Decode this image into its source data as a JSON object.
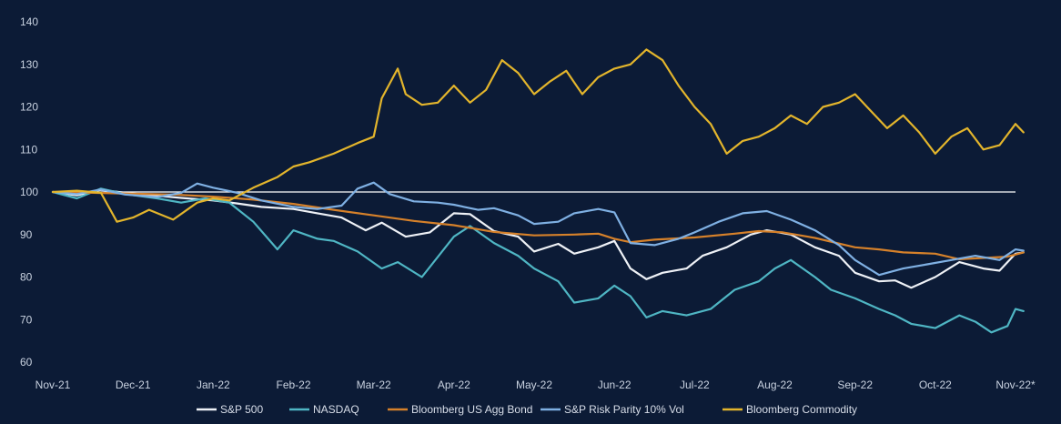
{
  "chart_data": {
    "type": "line",
    "title": "",
    "xlabel": "",
    "ylabel": "",
    "ylim": [
      60,
      140
    ],
    "yticks": [
      60,
      70,
      80,
      90,
      100,
      110,
      120,
      130,
      140
    ],
    "x_tick_labels": [
      "Nov-21",
      "Dec-21",
      "Jan-22",
      "Feb-22",
      "Mar-22",
      "Apr-22",
      "May-22",
      "Jun-22",
      "Jul-22",
      "Aug-22",
      "Sep-22",
      "Oct-22",
      "Nov-22*"
    ],
    "reference_line": 100,
    "grid": false,
    "legend_position": "bottom",
    "x_index_range": [
      0,
      12.1
    ],
    "series": [
      {
        "name": "S&P 500",
        "color": "#eef1f6",
        "points": [
          [
            0,
            100
          ],
          [
            0.3,
            99.2
          ],
          [
            0.6,
            100.5
          ],
          [
            0.9,
            99.8
          ],
          [
            1.2,
            99.3
          ],
          [
            1.6,
            98.6
          ],
          [
            2,
            98
          ],
          [
            2.3,
            97.3
          ],
          [
            2.6,
            96.5
          ],
          [
            3,
            96
          ],
          [
            3.3,
            95
          ],
          [
            3.6,
            94
          ],
          [
            3.9,
            91
          ],
          [
            4.1,
            92.8
          ],
          [
            4.4,
            89.5
          ],
          [
            4.7,
            90.5
          ],
          [
            5,
            95
          ],
          [
            5.2,
            94.8
          ],
          [
            5.5,
            90.8
          ],
          [
            5.8,
            89.5
          ],
          [
            6,
            86
          ],
          [
            6.3,
            87.8
          ],
          [
            6.5,
            85.5
          ],
          [
            6.8,
            87
          ],
          [
            7,
            88.5
          ],
          [
            7.2,
            82
          ],
          [
            7.4,
            79.5
          ],
          [
            7.6,
            81
          ],
          [
            7.9,
            82
          ],
          [
            8.1,
            85
          ],
          [
            8.4,
            87
          ],
          [
            8.7,
            90
          ],
          [
            8.9,
            91
          ],
          [
            9.2,
            90
          ],
          [
            9.5,
            87
          ],
          [
            9.8,
            85
          ],
          [
            10,
            81
          ],
          [
            10.3,
            79
          ],
          [
            10.5,
            79.2
          ],
          [
            10.7,
            77.5
          ],
          [
            11,
            80
          ],
          [
            11.3,
            83.5
          ],
          [
            11.6,
            82
          ],
          [
            11.8,
            81.5
          ],
          [
            12,
            85.5
          ],
          [
            12.1,
            85.8
          ]
        ]
      },
      {
        "name": "NASDAQ",
        "color": "#4fb6c4",
        "points": [
          [
            0,
            100
          ],
          [
            0.3,
            98.5
          ],
          [
            0.6,
            100.8
          ],
          [
            0.9,
            99.5
          ],
          [
            1.3,
            98.5
          ],
          [
            1.6,
            97.5
          ],
          [
            1.9,
            98.5
          ],
          [
            2.2,
            97.5
          ],
          [
            2.5,
            93
          ],
          [
            2.8,
            86.5
          ],
          [
            3,
            91
          ],
          [
            3.3,
            89
          ],
          [
            3.5,
            88.5
          ],
          [
            3.8,
            86
          ],
          [
            4.1,
            82
          ],
          [
            4.3,
            83.5
          ],
          [
            4.6,
            80
          ],
          [
            5,
            89.5
          ],
          [
            5.2,
            92
          ],
          [
            5.5,
            88
          ],
          [
            5.8,
            85
          ],
          [
            6,
            82
          ],
          [
            6.3,
            79
          ],
          [
            6.5,
            74
          ],
          [
            6.8,
            75
          ],
          [
            7,
            78
          ],
          [
            7.2,
            75.5
          ],
          [
            7.4,
            70.5
          ],
          [
            7.6,
            72
          ],
          [
            7.9,
            71
          ],
          [
            8.2,
            72.5
          ],
          [
            8.5,
            77
          ],
          [
            8.8,
            79
          ],
          [
            9,
            82
          ],
          [
            9.2,
            84
          ],
          [
            9.5,
            80
          ],
          [
            9.7,
            77
          ],
          [
            10,
            75
          ],
          [
            10.3,
            72.5
          ],
          [
            10.5,
            71
          ],
          [
            10.7,
            69
          ],
          [
            11,
            68
          ],
          [
            11.3,
            71
          ],
          [
            11.5,
            69.5
          ],
          [
            11.7,
            67
          ],
          [
            11.9,
            68.5
          ],
          [
            12,
            72.5
          ],
          [
            12.1,
            72
          ]
        ]
      },
      {
        "name": "Bloomberg US Agg Bond",
        "color": "#d6812a",
        "points": [
          [
            0,
            100
          ],
          [
            0.5,
            99.8
          ],
          [
            1,
            99.6
          ],
          [
            1.5,
            99.4
          ],
          [
            2,
            98.9
          ],
          [
            2.5,
            98.2
          ],
          [
            3,
            97.2
          ],
          [
            3.5,
            95.8
          ],
          [
            4,
            94.5
          ],
          [
            4.5,
            93.2
          ],
          [
            5,
            92.2
          ],
          [
            5.5,
            90.6
          ],
          [
            6,
            89.8
          ],
          [
            6.5,
            90
          ],
          [
            6.8,
            90.2
          ],
          [
            7,
            89
          ],
          [
            7.2,
            88.2
          ],
          [
            7.5,
            88.8
          ],
          [
            8,
            89.3
          ],
          [
            8.5,
            90.2
          ],
          [
            8.8,
            90.8
          ],
          [
            9.1,
            90.5
          ],
          [
            9.5,
            89.2
          ],
          [
            10,
            87
          ],
          [
            10.3,
            86.5
          ],
          [
            10.6,
            85.8
          ],
          [
            11,
            85.5
          ],
          [
            11.3,
            84.2
          ],
          [
            11.6,
            84.5
          ],
          [
            11.9,
            84.8
          ],
          [
            12.1,
            85.8
          ]
        ]
      },
      {
        "name": "S&P Risk Parity 10% Vol",
        "color": "#7fb0e3",
        "points": [
          [
            0,
            100
          ],
          [
            0.3,
            99.5
          ],
          [
            0.6,
            100.6
          ],
          [
            0.9,
            99.4
          ],
          [
            1.3,
            98.8
          ],
          [
            1.6,
            99.8
          ],
          [
            1.8,
            102
          ],
          [
            2,
            101
          ],
          [
            2.3,
            99.8
          ],
          [
            2.6,
            98
          ],
          [
            3,
            96.5
          ],
          [
            3.3,
            96
          ],
          [
            3.6,
            96.8
          ],
          [
            3.8,
            100.8
          ],
          [
            4,
            102.2
          ],
          [
            4.2,
            99.5
          ],
          [
            4.5,
            97.8
          ],
          [
            4.8,
            97.5
          ],
          [
            5,
            97
          ],
          [
            5.3,
            95.8
          ],
          [
            5.5,
            96.2
          ],
          [
            5.8,
            94.5
          ],
          [
            6,
            92.5
          ],
          [
            6.3,
            93
          ],
          [
            6.5,
            95
          ],
          [
            6.8,
            96
          ],
          [
            7,
            95.2
          ],
          [
            7.2,
            88
          ],
          [
            7.5,
            87.5
          ],
          [
            7.8,
            89
          ],
          [
            8,
            90.5
          ],
          [
            8.3,
            93
          ],
          [
            8.6,
            95
          ],
          [
            8.9,
            95.5
          ],
          [
            9.2,
            93.5
          ],
          [
            9.5,
            91
          ],
          [
            9.8,
            87.5
          ],
          [
            10,
            84
          ],
          [
            10.3,
            80.5
          ],
          [
            10.6,
            82
          ],
          [
            10.9,
            83
          ],
          [
            11.2,
            84
          ],
          [
            11.5,
            85
          ],
          [
            11.8,
            84
          ],
          [
            12,
            86.5
          ],
          [
            12.1,
            86.2
          ]
        ]
      },
      {
        "name": "Bloomberg Commodity",
        "color": "#e3b52c",
        "points": [
          [
            0,
            100
          ],
          [
            0.3,
            100.3
          ],
          [
            0.6,
            99.8
          ],
          [
            0.8,
            93
          ],
          [
            1,
            94
          ],
          [
            1.2,
            95.8
          ],
          [
            1.5,
            93.5
          ],
          [
            1.8,
            97.5
          ],
          [
            2,
            98.5
          ],
          [
            2.2,
            98
          ],
          [
            2.5,
            101
          ],
          [
            2.8,
            103.5
          ],
          [
            3,
            106
          ],
          [
            3.2,
            107
          ],
          [
            3.5,
            109
          ],
          [
            3.8,
            111.5
          ],
          [
            4,
            113
          ],
          [
            4.1,
            122
          ],
          [
            4.3,
            129
          ],
          [
            4.4,
            123
          ],
          [
            4.6,
            120.5
          ],
          [
            4.8,
            121
          ],
          [
            5,
            125
          ],
          [
            5.2,
            121
          ],
          [
            5.4,
            124
          ],
          [
            5.6,
            131
          ],
          [
            5.8,
            128
          ],
          [
            6,
            123
          ],
          [
            6.2,
            126
          ],
          [
            6.4,
            128.5
          ],
          [
            6.6,
            123
          ],
          [
            6.8,
            127
          ],
          [
            7,
            129
          ],
          [
            7.2,
            130
          ],
          [
            7.4,
            133.5
          ],
          [
            7.6,
            131
          ],
          [
            7.8,
            125
          ],
          [
            8,
            120
          ],
          [
            8.2,
            116
          ],
          [
            8.4,
            109
          ],
          [
            8.6,
            112
          ],
          [
            8.8,
            113
          ],
          [
            9,
            115
          ],
          [
            9.2,
            118
          ],
          [
            9.4,
            116
          ],
          [
            9.6,
            120
          ],
          [
            9.8,
            121
          ],
          [
            10,
            123
          ],
          [
            10.2,
            119
          ],
          [
            10.4,
            115
          ],
          [
            10.6,
            118
          ],
          [
            10.8,
            114
          ],
          [
            11,
            109
          ],
          [
            11.2,
            113
          ],
          [
            11.4,
            115
          ],
          [
            11.6,
            110
          ],
          [
            11.8,
            111
          ],
          [
            12,
            116
          ],
          [
            12.1,
            114
          ]
        ]
      }
    ]
  }
}
